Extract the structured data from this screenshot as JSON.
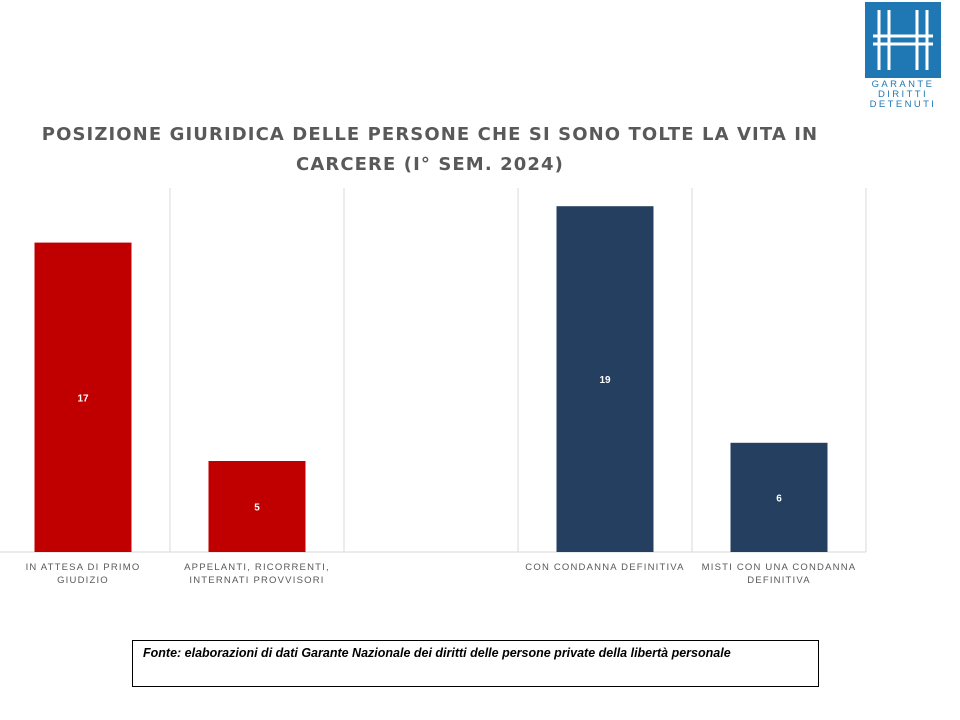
{
  "logo": {
    "lines": [
      "GARANTE",
      "DIRITTI",
      "DETENUTI"
    ]
  },
  "source_note": "Fonte: elaborazioni  di dati Garante Nazionale dei diritti delle persone private della libertà personale",
  "chart_data": {
    "type": "bar",
    "title": "POSIZIONE GIURIDICA DELLE PERSONE CHE SI SONO TOLTE LA VITA IN CARCERE (I° SEM. 2024)",
    "categories": [
      [
        "IN ATTESA DI PRIMO",
        "GIUDIZIO"
      ],
      [
        "APPELANTI, RICORRENTI,",
        "INTERNATI PROVVISORI"
      ],
      [],
      [
        "CON CONDANNA DEFINITIVA"
      ],
      [
        "MISTI CON UNA CONDANNA",
        "DEFINITIVA"
      ]
    ],
    "values": [
      17,
      5,
      null,
      19,
      6
    ],
    "colors": [
      "#c00000",
      "#c00000",
      null,
      "#243f60",
      "#243f60"
    ],
    "ylim": [
      0,
      20
    ],
    "grid": "vertical category separators",
    "data_labels": true,
    "legend": "none"
  }
}
